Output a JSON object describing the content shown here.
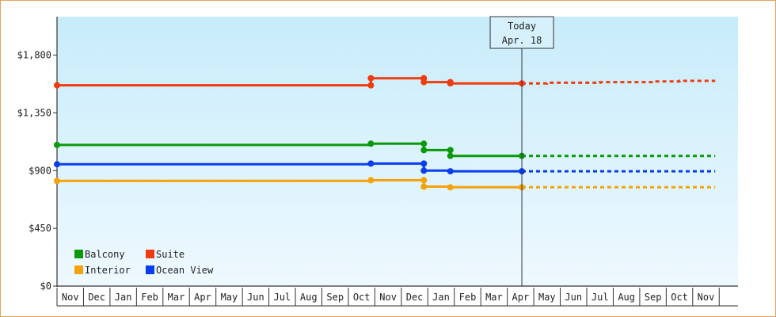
{
  "chart_data": {
    "type": "line",
    "ylim": [
      0,
      2100
    ],
    "yticks": [
      0,
      450,
      900,
      1350,
      1800
    ],
    "ytick_labels": [
      "$0",
      "$450",
      "$900",
      "$1,350",
      "$1,800"
    ],
    "month_labels": [
      "Nov",
      "Dec",
      "Jan",
      "Feb",
      "Mar",
      "Apr",
      "May",
      "Jun",
      "Jul",
      "Aug",
      "Sep",
      "Oct",
      "Nov",
      "Dec",
      "Jan",
      "Feb",
      "Mar",
      "Apr",
      "May",
      "Jun",
      "Jul",
      "Aug",
      "Sep",
      "Oct",
      "Nov"
    ],
    "today": {
      "line1": "Today",
      "line2": "Apr. 18",
      "x": 17.55
    },
    "legend": {
      "placement": "bottom-left"
    },
    "series": [
      {
        "name": "Balcony",
        "color": "#0a9a0a",
        "points": [
          [
            0.0,
            1100
          ],
          [
            11.85,
            1100
          ],
          [
            11.85,
            1110
          ],
          [
            13.85,
            1110
          ],
          [
            13.85,
            1060
          ],
          [
            14.85,
            1060
          ],
          [
            14.85,
            1015
          ],
          [
            17.55,
            1015
          ]
        ],
        "markers": [
          [
            0.0,
            1100
          ],
          [
            11.85,
            1110
          ],
          [
            13.85,
            1110
          ],
          [
            13.85,
            1060
          ],
          [
            14.85,
            1060
          ],
          [
            14.85,
            1015
          ],
          [
            17.55,
            1015
          ]
        ],
        "forecast": [
          [
            17.55,
            1015
          ],
          [
            24.85,
            1015
          ]
        ]
      },
      {
        "name": "Suite",
        "color": "#f03a10",
        "points": [
          [
            0.0,
            1565
          ],
          [
            11.85,
            1565
          ],
          [
            11.85,
            1620
          ],
          [
            13.85,
            1620
          ],
          [
            13.85,
            1590
          ],
          [
            14.85,
            1590
          ],
          [
            14.85,
            1580
          ],
          [
            17.55,
            1580
          ]
        ],
        "markers": [
          [
            0.0,
            1565
          ],
          [
            11.85,
            1565
          ],
          [
            11.85,
            1620
          ],
          [
            13.85,
            1620
          ],
          [
            13.85,
            1590
          ],
          [
            14.85,
            1590
          ],
          [
            14.85,
            1580
          ],
          [
            17.55,
            1580
          ]
        ],
        "forecast": [
          [
            17.55,
            1580
          ],
          [
            18.5,
            1580
          ],
          [
            18.5,
            1585
          ],
          [
            20.5,
            1585
          ],
          [
            20.5,
            1590
          ],
          [
            22.5,
            1590
          ],
          [
            22.5,
            1595
          ],
          [
            23.5,
            1595
          ],
          [
            23.5,
            1600
          ],
          [
            24.85,
            1600
          ]
        ]
      },
      {
        "name": "Interior",
        "color": "#f5a20a",
        "points": [
          [
            0.0,
            820
          ],
          [
            11.85,
            820
          ],
          [
            11.85,
            825
          ],
          [
            13.85,
            825
          ],
          [
            13.85,
            775
          ],
          [
            14.85,
            775
          ],
          [
            14.85,
            770
          ],
          [
            17.55,
            770
          ]
        ],
        "markers": [
          [
            0.0,
            820
          ],
          [
            11.85,
            825
          ],
          [
            13.85,
            825
          ],
          [
            13.85,
            775
          ],
          [
            14.85,
            770
          ],
          [
            17.55,
            770
          ]
        ],
        "forecast": [
          [
            17.55,
            770
          ],
          [
            24.85,
            770
          ]
        ]
      },
      {
        "name": "Ocean View",
        "color": "#0a3cf0",
        "points": [
          [
            0.0,
            950
          ],
          [
            11.85,
            950
          ],
          [
            11.85,
            955
          ],
          [
            13.85,
            955
          ],
          [
            13.85,
            900
          ],
          [
            14.85,
            900
          ],
          [
            14.85,
            895
          ],
          [
            17.55,
            895
          ]
        ],
        "markers": [
          [
            0.0,
            950
          ],
          [
            11.85,
            955
          ],
          [
            13.85,
            955
          ],
          [
            13.85,
            900
          ],
          [
            14.85,
            895
          ],
          [
            17.55,
            895
          ]
        ],
        "forecast": [
          [
            17.55,
            895
          ],
          [
            24.85,
            895
          ]
        ]
      }
    ]
  }
}
